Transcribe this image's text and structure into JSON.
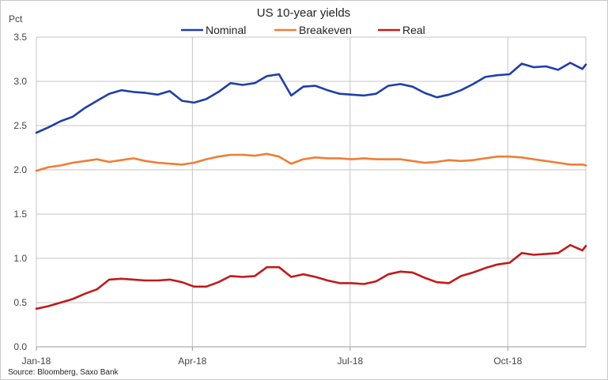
{
  "chart_data": {
    "type": "line",
    "title": "US 10-year yields",
    "ylabel": "Pct",
    "xlabel": "",
    "source": "Source: Bloomberg, Saxo Bank",
    "ylim": [
      0,
      3.5
    ],
    "yticks": [
      "0.0",
      "0.5",
      "1.0",
      "1.5",
      "2.0",
      "2.5",
      "3.0",
      "3.5"
    ],
    "x_range": [
      "2018-01-02",
      "2018-11-15"
    ],
    "xticks": [
      {
        "label": "Jan-18",
        "date": "2018-01-02"
      },
      {
        "label": "Apr-18",
        "date": "2018-04-02"
      },
      {
        "label": "Jul-18",
        "date": "2018-07-02"
      },
      {
        "label": "Oct-18",
        "date": "2018-10-01"
      }
    ],
    "grid": true,
    "legend_position": "top",
    "x": [
      "2018-01-02",
      "2018-01-09",
      "2018-01-16",
      "2018-01-23",
      "2018-01-30",
      "2018-02-06",
      "2018-02-13",
      "2018-02-20",
      "2018-02-27",
      "2018-03-06",
      "2018-03-13",
      "2018-03-20",
      "2018-03-27",
      "2018-04-03",
      "2018-04-10",
      "2018-04-17",
      "2018-04-24",
      "2018-05-01",
      "2018-05-08",
      "2018-05-15",
      "2018-05-22",
      "2018-05-29",
      "2018-06-05",
      "2018-06-12",
      "2018-06-19",
      "2018-06-26",
      "2018-07-03",
      "2018-07-10",
      "2018-07-17",
      "2018-07-24",
      "2018-07-31",
      "2018-08-07",
      "2018-08-14",
      "2018-08-21",
      "2018-08-28",
      "2018-09-04",
      "2018-09-11",
      "2018-09-18",
      "2018-09-25",
      "2018-10-02",
      "2018-10-09",
      "2018-10-16",
      "2018-10-23",
      "2018-10-30",
      "2018-11-06",
      "2018-11-13",
      "2018-11-15"
    ],
    "series": [
      {
        "name": "Nominal",
        "color": "#1f3ea8",
        "values": [
          2.42,
          2.48,
          2.55,
          2.6,
          2.7,
          2.78,
          2.86,
          2.9,
          2.88,
          2.87,
          2.85,
          2.89,
          2.78,
          2.76,
          2.8,
          2.88,
          2.98,
          2.96,
          2.98,
          3.06,
          3.08,
          2.84,
          2.94,
          2.95,
          2.9,
          2.86,
          2.85,
          2.84,
          2.86,
          2.95,
          2.97,
          2.94,
          2.87,
          2.82,
          2.85,
          2.9,
          2.97,
          3.05,
          3.07,
          3.08,
          3.2,
          3.16,
          3.17,
          3.13,
          3.21,
          3.14,
          3.19
        ]
      },
      {
        "name": "Breakeven",
        "color": "#f07d34",
        "values": [
          1.99,
          2.03,
          2.05,
          2.08,
          2.1,
          2.12,
          2.09,
          2.11,
          2.13,
          2.1,
          2.08,
          2.07,
          2.06,
          2.08,
          2.12,
          2.15,
          2.17,
          2.17,
          2.16,
          2.18,
          2.15,
          2.07,
          2.12,
          2.14,
          2.13,
          2.13,
          2.12,
          2.13,
          2.12,
          2.12,
          2.12,
          2.1,
          2.08,
          2.09,
          2.11,
          2.1,
          2.11,
          2.13,
          2.15,
          2.15,
          2.14,
          2.12,
          2.1,
          2.08,
          2.06,
          2.06,
          2.05
        ]
      },
      {
        "name": "Real",
        "color": "#c01a1a",
        "values": [
          0.43,
          0.46,
          0.5,
          0.54,
          0.6,
          0.65,
          0.76,
          0.77,
          0.76,
          0.75,
          0.75,
          0.76,
          0.73,
          0.68,
          0.68,
          0.73,
          0.8,
          0.79,
          0.8,
          0.9,
          0.9,
          0.79,
          0.82,
          0.79,
          0.75,
          0.72,
          0.72,
          0.71,
          0.74,
          0.82,
          0.85,
          0.84,
          0.78,
          0.73,
          0.72,
          0.8,
          0.84,
          0.89,
          0.93,
          0.95,
          1.06,
          1.04,
          1.05,
          1.06,
          1.15,
          1.09,
          1.14
        ]
      }
    ]
  }
}
